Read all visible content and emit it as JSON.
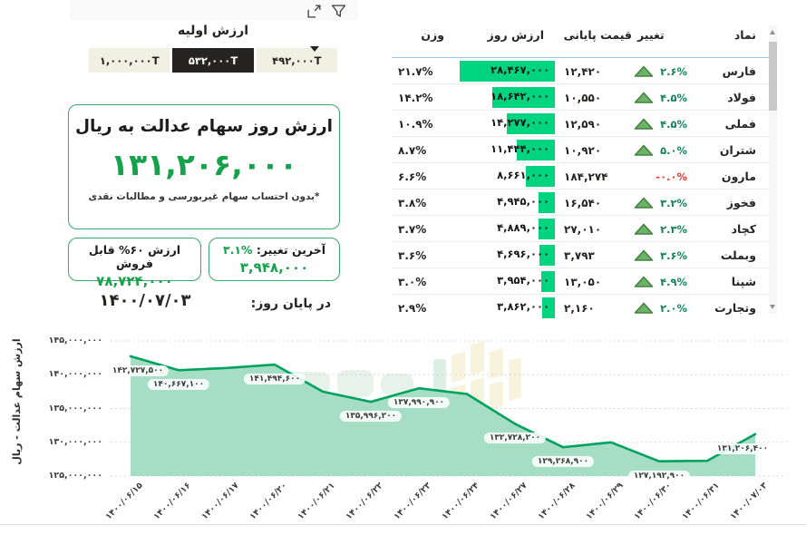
{
  "toolbar": {
    "icons": [
      {
        "name": "filter-icon"
      },
      {
        "name": "focus-mode-icon"
      }
    ]
  },
  "slicer": {
    "title": "ارزش اولیه",
    "options": [
      {
        "label": "۴۹۲,۰۰۰T",
        "selected": false
      },
      {
        "label": "۵۳۲,۰۰۰T",
        "selected": true
      },
      {
        "label": "۱,۰۰۰,۰۰۰T",
        "selected": false
      }
    ]
  },
  "value_card": {
    "title": "ارزش روز سهام عدالت به ریال",
    "value": "۱۳۱,۲۰۶,۰۰۰",
    "footnote": "*بدون احتساب سهام غیربورسی و مطالبات نقدی"
  },
  "change_card": {
    "label": "آخرین تغییر:",
    "percent": "۳.۱%",
    "value": "۳,۹۴۸,۰۰۰"
  },
  "sellable_card": {
    "title": "ارزش ۶۰% قابل فروش",
    "value": "۷۸,۷۲۴,۰۰۰"
  },
  "eod": {
    "label": "در پایان روز:",
    "date": "۱۴۰۰/۰۷/۰۳"
  },
  "table": {
    "columns": {
      "symbol": "نماد",
      "change": "تغییر",
      "close": "قیمت پایانی",
      "day_value": "ارزش روز",
      "weight": "وزن"
    },
    "sorted_by": "ارزش روز",
    "rows": [
      {
        "symbol": "فارس",
        "change": "۲.۶%",
        "direction": "up",
        "close": "۱۲,۴۲۰",
        "day_value": "۲۸,۴۶۷,۰۰۰",
        "day_value_num": 28467000,
        "weight": "۲۱.۷%"
      },
      {
        "symbol": "فولاد",
        "change": "۴.۵%",
        "direction": "up",
        "close": "۱۰,۵۵۰",
        "day_value": "۱۸,۶۴۲,۰۰۰",
        "day_value_num": 18642000,
        "weight": "۱۴.۲%"
      },
      {
        "symbol": "فملی",
        "change": "۴.۵%",
        "direction": "up",
        "close": "۱۲,۵۹۰",
        "day_value": "۱۴,۲۷۷,۰۰۰",
        "day_value_num": 14277000,
        "weight": "۱۰.۹%"
      },
      {
        "symbol": "شتران",
        "change": "۵.۰%",
        "direction": "up",
        "close": "۱۰,۹۲۰",
        "day_value": "۱۱,۴۴۴,۰۰۰",
        "day_value_num": 11444000,
        "weight": "۸.۷%"
      },
      {
        "symbol": "مارون",
        "change": "-۰.۰%",
        "direction": "none",
        "close": "۱۸۴,۲۷۴",
        "day_value": "۸,۶۶۱,۰۰۰",
        "day_value_num": 8661000,
        "weight": "۶.۶%"
      },
      {
        "symbol": "فخوز",
        "change": "۳.۲%",
        "direction": "up",
        "close": "۱۶,۵۴۰",
        "day_value": "۴,۹۴۵,۰۰۰",
        "day_value_num": 4945000,
        "weight": "۳.۸%"
      },
      {
        "symbol": "کچاد",
        "change": "۲.۳%",
        "direction": "up",
        "close": "۲۷,۰۱۰",
        "day_value": "۴,۸۸۹,۰۰۰",
        "day_value_num": 4889000,
        "weight": "۳.۷%"
      },
      {
        "symbol": "وبملت",
        "change": "۳.۶%",
        "direction": "up",
        "close": "۳,۷۹۳",
        "day_value": "۴,۶۹۶,۰۰۰",
        "day_value_num": 4696000,
        "weight": "۳.۶%"
      },
      {
        "symbol": "شپنا",
        "change": "۴.۹%",
        "direction": "up",
        "close": "۱۳,۰۵۰",
        "day_value": "۳,۹۵۴,۰۰۰",
        "day_value_num": 3954000,
        "weight": "۳.۰%"
      },
      {
        "symbol": "وتجارت",
        "change": "۲.۰%",
        "direction": "up",
        "close": "۲,۱۶۰",
        "day_value": "۳,۸۶۲,۰۰۰",
        "day_value_num": 3862000,
        "weight": "۲.۹%"
      }
    ]
  },
  "chart_data": {
    "type": "area",
    "title": "",
    "xlabel": "",
    "ylabel": "ارزش سهام عدالت - ریال",
    "ylim": [
      125000000,
      146000000
    ],
    "grid": "dotted-horizontal",
    "legend": "none",
    "x_labels": [
      "۱۴۰۰/۰۶/۱۵",
      "۱۴۰۰/۰۶/۱۶",
      "۱۴۰۰/۰۶/۱۷",
      "۱۴۰۰/۰۶/۲۰",
      "۱۴۰۰/۰۶/۲۱",
      "۱۴۰۰/۰۶/۲۲",
      "۱۴۰۰/۰۶/۲۳",
      "۱۴۰۰/۰۶/۲۴",
      "۱۴۰۰/۰۶/۲۷",
      "۱۴۰۰/۰۶/۲۸",
      "۱۴۰۰/۰۶/۲۹",
      "۱۴۰۰/۰۶/۳۰",
      "۱۴۰۰/۰۶/۳۱",
      "۱۴۰۰/۰۷/۰۳"
    ],
    "values": [
      142727500,
      140667100,
      141000000,
      141494600,
      137500000,
      135996200,
      137990900,
      137150000,
      132728200,
      129268900,
      130000000,
      127192900,
      127250000,
      131206400
    ],
    "point_labels": [
      "۱۴۲,۷۲۷,۵۰۰",
      "۱۴۰,۶۶۷,۱۰۰",
      null,
      "۱۴۱,۴۹۴,۶۰۰",
      null,
      "۱۳۵,۹۹۶,۲۰۰",
      "۱۳۷,۹۹۰,۹۰۰",
      null,
      "۱۳۲,۷۲۸,۲۰۰",
      "۱۲۹,۲۶۸,۹۰۰",
      null,
      "۱۲۷,۱۹۲,۹۰۰",
      null,
      "۱۳۱,۲۰۶,۴۰۰"
    ],
    "y_ticks": [
      125000000,
      130000000,
      135000000,
      140000000,
      145000000
    ],
    "y_tick_labels": [
      "۱۲۵,۰۰۰,۰۰۰",
      "۱۳۰,۰۰۰,۰۰۰",
      "۱۳۵,۰۰۰,۰۰۰",
      "۱۴۰,۰۰۰,۰۰۰",
      "۱۴۵,۰۰۰,۰۰۰"
    ]
  },
  "colors": {
    "accent_green": "#16a24b",
    "line_green": "#00a25e",
    "area_fill_green": "#a6dec5",
    "bar_green": "#00d47e",
    "up_triangle_green": "#6cb368",
    "negative_red": "#e03a32",
    "header_separator_blue": "#9ec6e8",
    "selected_button_bg": "#252423",
    "button_bg": "#f0f1e3"
  }
}
